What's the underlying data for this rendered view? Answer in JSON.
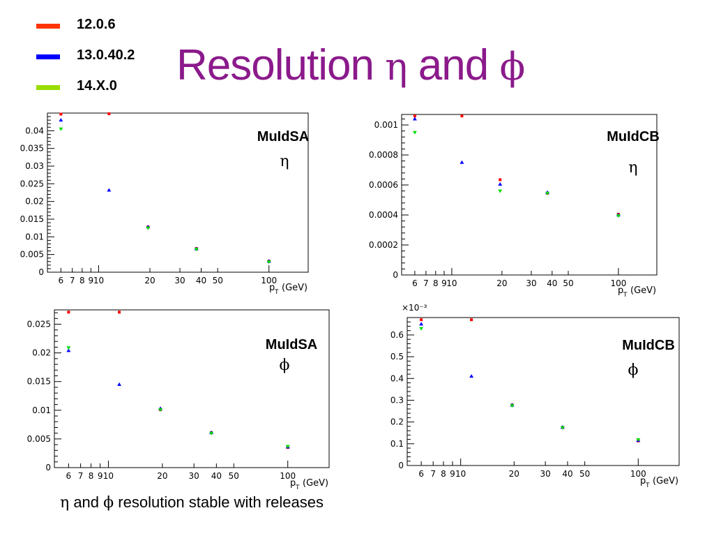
{
  "legend": {
    "items": [
      {
        "label": "12.0.6",
        "color": "#ff3300"
      },
      {
        "label": "13.0.40.2",
        "color": "#0000ff"
      },
      {
        "label": "14.X.0",
        "color": "#99dd00"
      }
    ]
  },
  "slide": {
    "title_word": "Resolution",
    "title_eta": "η",
    "title_and": "and",
    "title_phi": "ϕ"
  },
  "footer": {
    "eta": "η",
    "and": "and",
    "phi": "ϕ",
    "rest": "resolution stable with releases"
  },
  "chart_data": [
    {
      "type": "scatter",
      "title": "MuIdSA",
      "subtitle": "η",
      "xlabel": "p",
      "xlabel_sub": "T",
      "xlabel_unit": "(GeV)",
      "xscale": "log",
      "xlim": [
        5,
        170
      ],
      "ylim": [
        0,
        0.045
      ],
      "yticks": [
        0,
        0.005,
        0.01,
        0.015,
        0.02,
        0.025,
        0.03,
        0.035,
        0.04
      ],
      "yticklabels": [
        "0",
        "0.005",
        "0.01",
        "0.015",
        "0.02",
        "0.025",
        "0.03",
        "0.035",
        "0.04"
      ],
      "xticks": [
        6,
        7,
        8,
        9,
        10,
        20,
        30,
        40,
        50,
        100
      ],
      "xticklabels": [
        "6",
        "7",
        "8",
        "9",
        "10",
        "20",
        "30",
        "40",
        "50",
        "100"
      ],
      "series": [
        {
          "name": "12.0.6",
          "color": "#ff0000",
          "x": [
            6,
            11.5,
            19.5,
            37.5,
            100
          ],
          "y": [
            0.0447,
            0.0448,
            0.0128,
            0.0067,
            0.0031
          ]
        },
        {
          "name": "13.0.40.2",
          "color": "#0000ff",
          "x": [
            6,
            11.5,
            19.5,
            37.5,
            100
          ],
          "y": [
            0.043,
            0.0232,
            0.0128,
            0.0066,
            0.0031
          ]
        },
        {
          "name": "14.X.0",
          "color": "#00dd00",
          "x": [
            6,
            19.5,
            37.5,
            100
          ],
          "y": [
            0.0405,
            0.0125,
            0.0065,
            0.0029
          ]
        }
      ]
    },
    {
      "type": "scatter",
      "title": "MuIdCB",
      "subtitle": "η",
      "xlabel": "p",
      "xlabel_sub": "T",
      "xlabel_unit": "(GeV)",
      "xscale": "log",
      "xlim": [
        5,
        170
      ],
      "ylim": [
        0,
        0.00107
      ],
      "yticks": [
        0,
        0.0002,
        0.0004,
        0.0006,
        0.0008,
        0.001
      ],
      "yticklabels": [
        "0",
        "0.0002",
        "0.0004",
        "0.0006",
        "0.0008",
        "0.001"
      ],
      "xticks": [
        6,
        7,
        8,
        9,
        10,
        20,
        30,
        40,
        50,
        100
      ],
      "xticklabels": [
        "6",
        "7",
        "8",
        "9",
        "10",
        "20",
        "30",
        "40",
        "50",
        "100"
      ],
      "series": [
        {
          "name": "12.0.6",
          "color": "#ff0000",
          "x": [
            6,
            11.5,
            19.5,
            37.5,
            100
          ],
          "y": [
            0.00106,
            0.00106,
            0.000635,
            0.000545,
            0.000405
          ]
        },
        {
          "name": "13.0.40.2",
          "color": "#0000ff",
          "x": [
            6,
            11.5,
            19.5,
            37.5,
            100
          ],
          "y": [
            0.00104,
            0.00075,
            0.000605,
            0.00055,
            0.0004
          ]
        },
        {
          "name": "14.X.0",
          "color": "#00dd00",
          "x": [
            6,
            19.5,
            37.5,
            100
          ],
          "y": [
            0.00095,
            0.00056,
            0.000545,
            0.000395
          ]
        }
      ]
    },
    {
      "type": "scatter",
      "title": "MuIdSA",
      "subtitle": "ϕ",
      "xlabel": "p",
      "xlabel_sub": "T",
      "xlabel_unit": "(GeV)",
      "xscale": "log",
      "xlim": [
        5,
        170
      ],
      "ylim": [
        0,
        0.0275
      ],
      "yticks": [
        0,
        0.005,
        0.01,
        0.015,
        0.02,
        0.025
      ],
      "yticklabels": [
        "0",
        "0.005",
        "0.01",
        "0.015",
        "0.02",
        "0.025"
      ],
      "xticks": [
        6,
        7,
        8,
        9,
        10,
        20,
        30,
        40,
        50,
        100
      ],
      "xticklabels": [
        "6",
        "7",
        "8",
        "9",
        "10",
        "20",
        "30",
        "40",
        "50",
        "100"
      ],
      "series": [
        {
          "name": "12.0.6",
          "color": "#ff0000",
          "x": [
            6,
            11.5,
            19.5,
            37.5,
            100
          ],
          "y": [
            0.0271,
            0.0271,
            0.0101,
            0.0061,
            0.0035
          ]
        },
        {
          "name": "13.0.40.2",
          "color": "#0000ff",
          "x": [
            6,
            11.5,
            19.5,
            37.5,
            100
          ],
          "y": [
            0.0204,
            0.0145,
            0.0103,
            0.0061,
            0.0036
          ]
        },
        {
          "name": "14.X.0",
          "color": "#00dd00",
          "x": [
            6,
            19.5,
            37.5,
            100
          ],
          "y": [
            0.0209,
            0.0101,
            0.006,
            0.0037
          ]
        }
      ]
    },
    {
      "type": "scatter",
      "title": "MuIdCB",
      "subtitle": "ϕ",
      "xlabel": "p",
      "xlabel_sub": "T",
      "xlabel_unit": "(GeV)",
      "xscale": "log",
      "xlim": [
        5,
        170
      ],
      "ylim": [
        0,
        0.00068
      ],
      "y_multiplier": "×10⁻³",
      "yticks": [
        0,
        0.0001,
        0.0002,
        0.0003,
        0.0004,
        0.0005,
        0.0006
      ],
      "yticklabels": [
        "0",
        "0.1",
        "0.2",
        "0.3",
        "0.4",
        "0.5",
        "0.6"
      ],
      "xticks": [
        6,
        7,
        8,
        9,
        10,
        20,
        30,
        40,
        50,
        100
      ],
      "xticklabels": [
        "6",
        "7",
        "8",
        "9",
        "10",
        "20",
        "30",
        "40",
        "50",
        "100"
      ],
      "series": [
        {
          "name": "12.0.6",
          "color": "#ff0000",
          "x": [
            6,
            11.5,
            19.5,
            37.5,
            100
          ],
          "y": [
            0.00067,
            0.00067,
            0.000278,
            0.000175,
            0.000113
          ]
        },
        {
          "name": "13.0.40.2",
          "color": "#0000ff",
          "x": [
            6,
            11.5,
            19.5,
            37.5,
            100
          ],
          "y": [
            0.00065,
            0.00041,
            0.000278,
            0.000176,
            0.000115
          ]
        },
        {
          "name": "14.X.0",
          "color": "#00dd00",
          "x": [
            6,
            19.5,
            37.5,
            100
          ],
          "y": [
            0.00063,
            0.000275,
            0.000174,
            0.000119
          ]
        }
      ]
    }
  ]
}
